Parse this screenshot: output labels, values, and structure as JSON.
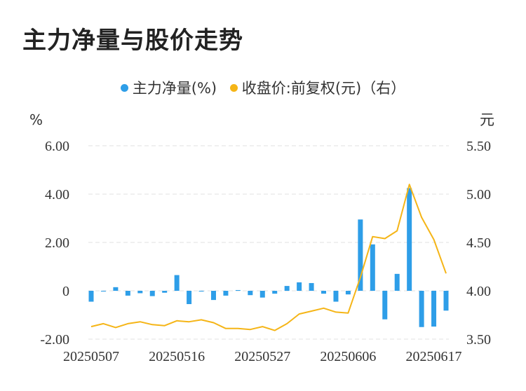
{
  "page_title": "主力净量与股价走势",
  "colors": {
    "bar": "#2e9ee8",
    "line": "#f5b517",
    "grid": "#e2e2e2",
    "axis_text": "#333333"
  },
  "chart_data": {
    "type": "bar+line",
    "title": "主力净量与股价走势",
    "legend": {
      "placement": "top-center",
      "entries": [
        "主力净量(%)",
        "收盘价:前复权(元)（右）"
      ]
    },
    "left_axis": {
      "unit": "%",
      "ylim": [
        -2,
        6
      ],
      "ticks": [
        "6.00",
        "4.00",
        "2.00",
        "0",
        "-2.00"
      ],
      "tick_values": [
        6,
        4,
        2,
        0,
        -2
      ]
    },
    "right_axis": {
      "unit": "元",
      "ylim": [
        3.5,
        5.5
      ],
      "ticks": [
        "5.50",
        "5.00",
        "4.50",
        "4.00",
        "3.50"
      ],
      "tick_values": [
        5.5,
        5.0,
        4.5,
        4.0,
        3.5
      ]
    },
    "x_tick_labels": [
      {
        "label": "20250507",
        "index": 0
      },
      {
        "label": "20250516",
        "index": 7
      },
      {
        "label": "20250527",
        "index": 14
      },
      {
        "label": "20250606",
        "index": 21
      },
      {
        "label": "20250617",
        "index": 28
      }
    ],
    "grid": true,
    "series": [
      {
        "name": "主力净量(%)",
        "type": "bar",
        "axis": "left",
        "values": [
          -0.45,
          -0.03,
          0.15,
          -0.2,
          -0.1,
          -0.22,
          -0.08,
          0.65,
          -0.55,
          -0.03,
          -0.38,
          -0.2,
          0.03,
          -0.18,
          -0.28,
          -0.12,
          0.2,
          0.35,
          0.32,
          -0.12,
          -0.45,
          -0.15,
          2.95,
          1.92,
          -1.18,
          0.7,
          4.25,
          -1.5,
          -1.48,
          -0.82
        ]
      },
      {
        "name": "收盘价:前复权(元)（右）",
        "type": "line",
        "axis": "right",
        "values": [
          3.63,
          3.66,
          3.62,
          3.66,
          3.68,
          3.65,
          3.64,
          3.69,
          3.68,
          3.7,
          3.67,
          3.61,
          3.61,
          3.6,
          3.63,
          3.59,
          3.66,
          3.76,
          3.79,
          3.82,
          3.78,
          3.77,
          4.14,
          4.56,
          4.54,
          4.62,
          5.1,
          4.76,
          4.53,
          4.18
        ]
      }
    ]
  }
}
